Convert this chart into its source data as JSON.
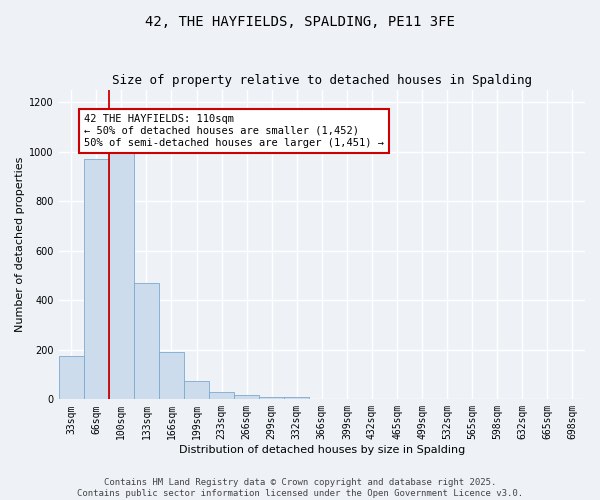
{
  "title_line1": "42, THE HAYFIELDS, SPALDING, PE11 3FE",
  "title_line2": "Size of property relative to detached houses in Spalding",
  "xlabel": "Distribution of detached houses by size in Spalding",
  "ylabel": "Number of detached properties",
  "categories": [
    "33sqm",
    "66sqm",
    "100sqm",
    "133sqm",
    "166sqm",
    "199sqm",
    "233sqm",
    "266sqm",
    "299sqm",
    "332sqm",
    "366sqm",
    "399sqm",
    "432sqm",
    "465sqm",
    "499sqm",
    "532sqm",
    "565sqm",
    "598sqm",
    "632sqm",
    "665sqm",
    "698sqm"
  ],
  "values": [
    175,
    970,
    1020,
    470,
    190,
    75,
    28,
    18,
    10,
    10,
    0,
    0,
    0,
    0,
    0,
    0,
    0,
    0,
    0,
    0,
    0
  ],
  "bar_color": "#ccdcec",
  "bar_edge_color": "#7aaad0",
  "red_line_index": 2,
  "annotation_text": "42 THE HAYFIELDS: 110sqm\n← 50% of detached houses are smaller (1,452)\n50% of semi-detached houses are larger (1,451) →",
  "annotation_box_color": "#ffffff",
  "annotation_box_edge": "#cc0000",
  "ylim": [
    0,
    1250
  ],
  "yticks": [
    0,
    200,
    400,
    600,
    800,
    1000,
    1200
  ],
  "footer_line1": "Contains HM Land Registry data © Crown copyright and database right 2025.",
  "footer_line2": "Contains public sector information licensed under the Open Government Licence v3.0.",
  "bg_color": "#eef2f7",
  "plot_bg_color": "#eef2f7",
  "grid_color": "#ffffff",
  "title_fontsize": 10,
  "subtitle_fontsize": 9,
  "axis_label_fontsize": 8,
  "tick_fontsize": 7,
  "annotation_fontsize": 7.5,
  "footer_fontsize": 6.5
}
